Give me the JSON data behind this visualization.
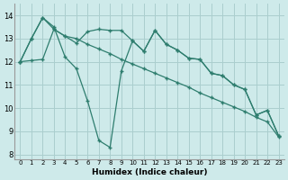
{
  "xlabel": "Humidex (Indice chaleur)",
  "xlim": [
    -0.5,
    23.5
  ],
  "ylim": [
    7.8,
    14.5
  ],
  "yticks": [
    8,
    9,
    10,
    11,
    12,
    13,
    14
  ],
  "xticks": [
    0,
    1,
    2,
    3,
    4,
    5,
    6,
    7,
    8,
    9,
    10,
    11,
    12,
    13,
    14,
    15,
    16,
    17,
    18,
    19,
    20,
    21,
    22,
    23
  ],
  "background_color": "#ceeaea",
  "grid_color": "#aacece",
  "line_color": "#2e7d6e",
  "line1_x": [
    0,
    1,
    2,
    3,
    4,
    5,
    6,
    7,
    8,
    9,
    10,
    11,
    12,
    13,
    14,
    15,
    16,
    17,
    18,
    19,
    20,
    21,
    22,
    23
  ],
  "line1_y": [
    12.0,
    13.0,
    13.9,
    13.5,
    12.2,
    11.7,
    10.3,
    8.6,
    8.3,
    11.6,
    12.9,
    12.45,
    13.35,
    12.75,
    12.5,
    12.15,
    12.1,
    11.5,
    11.4,
    11.0,
    10.8,
    9.7,
    9.9,
    8.8
  ],
  "line2_x": [
    0,
    1,
    2,
    3,
    4,
    5,
    6,
    7,
    8,
    9,
    10,
    11,
    12,
    13,
    14,
    15,
    16,
    17,
    18,
    19,
    20,
    21,
    22,
    23
  ],
  "line2_y": [
    12.0,
    13.0,
    13.9,
    13.4,
    13.1,
    12.8,
    13.3,
    13.4,
    13.35,
    13.35,
    12.9,
    12.45,
    13.35,
    12.75,
    12.5,
    12.15,
    12.1,
    11.5,
    11.4,
    11.0,
    10.8,
    9.7,
    9.9,
    8.8
  ],
  "line3_x": [
    0,
    1,
    2,
    3,
    4,
    5,
    6,
    7,
    8,
    9,
    10,
    11,
    12,
    13,
    14,
    15,
    16,
    17,
    18,
    19,
    20,
    21,
    22,
    23
  ],
  "line3_y": [
    12.0,
    12.05,
    12.1,
    13.4,
    13.1,
    13.0,
    12.75,
    12.55,
    12.35,
    12.1,
    11.9,
    11.7,
    11.5,
    11.3,
    11.1,
    10.9,
    10.65,
    10.45,
    10.25,
    10.05,
    9.85,
    9.6,
    9.4,
    8.75
  ]
}
